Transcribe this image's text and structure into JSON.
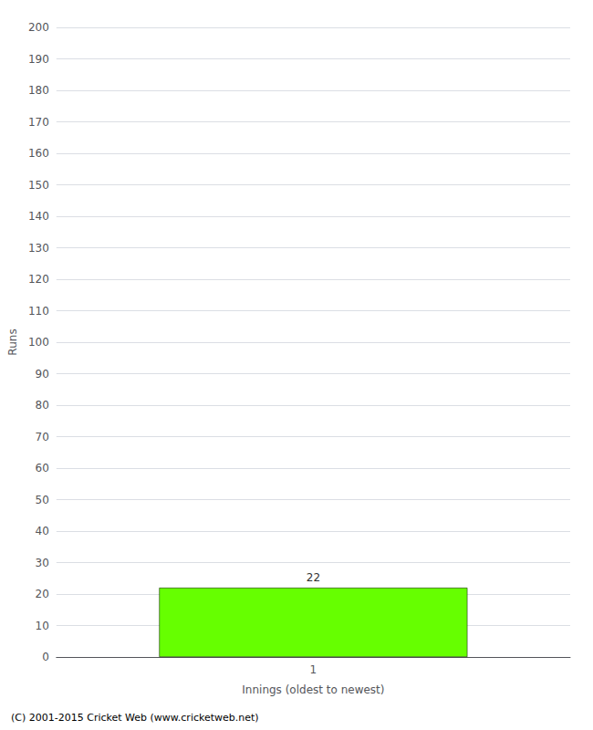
{
  "chart_data": {
    "type": "bar",
    "xlabel": "Innings (oldest to newest)",
    "ylabel": "Runs",
    "categories": [
      "1"
    ],
    "values": [
      22
    ],
    "color": "#66ff00",
    "ylim": [
      0,
      200
    ],
    "yticks": [
      0,
      10,
      20,
      30,
      40,
      50,
      60,
      70,
      80,
      90,
      100,
      110,
      120,
      130,
      140,
      150,
      160,
      170,
      180,
      190,
      200
    ],
    "grid": true,
    "data_labels": true,
    "annotations": [
      "(C) 2001-2015 Cricket Web (www.cricketweb.net)"
    ]
  }
}
